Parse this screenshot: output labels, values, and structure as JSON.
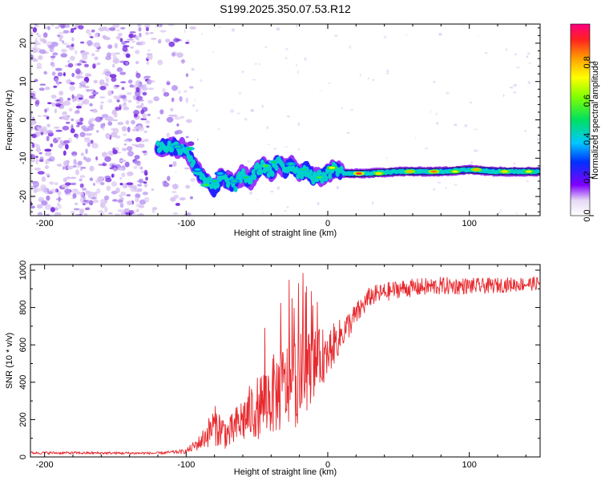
{
  "figure_title": "S199.2025.350.07.53.R12",
  "colors": {
    "snr_line": "#e8282d",
    "ridge_line": "#1a1a1a",
    "speckle_light": "#d9c4f2",
    "speckle_mid": "#b18cf0",
    "speckle_dark": "#7a2fe0"
  },
  "chart_data": [
    {
      "type": "heatmap",
      "name": "spectrogram",
      "xlabel": "Height of straight line (km)",
      "ylabel": "Frequency (Hz)",
      "xlim": [
        -210,
        150
      ],
      "ylim": [
        -25,
        25
      ],
      "xticks": [
        -200,
        -100,
        0,
        100
      ],
      "xtick_labels": [
        "-200",
        "-100",
        "0",
        "100"
      ],
      "yticks": [
        20,
        10,
        0,
        -10,
        -20
      ],
      "ytick_labels": [
        "20",
        "10",
        "0",
        "-10",
        "-20"
      ],
      "colorbar": {
        "label": "Normalized spectral amplitude",
        "range": [
          0,
          1
        ],
        "ticks": [
          0,
          0.2,
          0.4,
          0.6,
          0.8
        ],
        "tick_labels": [
          "0.0",
          "0.2",
          "0.4",
          "0.6",
          "0.8"
        ],
        "stops": [
          {
            "v": 0.0,
            "color": "#ffffff"
          },
          {
            "v": 0.08,
            "color": "#e6d8f5"
          },
          {
            "v": 0.16,
            "color": "#8000ff"
          },
          {
            "v": 0.28,
            "color": "#0030ff"
          },
          {
            "v": 0.38,
            "color": "#00c8ff"
          },
          {
            "v": 0.5,
            "color": "#00e060"
          },
          {
            "v": 0.62,
            "color": "#80ff00"
          },
          {
            "v": 0.72,
            "color": "#ffff00"
          },
          {
            "v": 0.82,
            "color": "#ffa000"
          },
          {
            "v": 0.92,
            "color": "#ff2020"
          },
          {
            "v": 1.0,
            "color": "#ff0080"
          }
        ]
      },
      "noise_region": {
        "x": [
          -210,
          -110
        ],
        "y": [
          -25,
          25
        ]
      },
      "ridge": [
        {
          "x": -120,
          "y": -7
        },
        {
          "x": -110,
          "y": -7
        },
        {
          "x": -100,
          "y": -7.5
        },
        {
          "x": -95,
          "y": -12
        },
        {
          "x": -90,
          "y": -14
        },
        {
          "x": -85,
          "y": -16
        },
        {
          "x": -80,
          "y": -18
        },
        {
          "x": -75,
          "y": -15
        },
        {
          "x": -70,
          "y": -16
        },
        {
          "x": -65,
          "y": -17
        },
        {
          "x": -60,
          "y": -14
        },
        {
          "x": -55,
          "y": -16
        },
        {
          "x": -50,
          "y": -13
        },
        {
          "x": -45,
          "y": -12
        },
        {
          "x": -40,
          "y": -14
        },
        {
          "x": -35,
          "y": -11
        },
        {
          "x": -30,
          "y": -13
        },
        {
          "x": -25,
          "y": -12
        },
        {
          "x": -20,
          "y": -14
        },
        {
          "x": -15,
          "y": -13
        },
        {
          "x": -10,
          "y": -15
        },
        {
          "x": -5,
          "y": -15
        },
        {
          "x": 0,
          "y": -14
        },
        {
          "x": 5,
          "y": -12.5
        },
        {
          "x": 12,
          "y": -14
        },
        {
          "x": 25,
          "y": -14
        },
        {
          "x": 50,
          "y": -13.5
        },
        {
          "x": 80,
          "y": -13.5
        },
        {
          "x": 100,
          "y": -13
        },
        {
          "x": 120,
          "y": -13.5
        },
        {
          "x": 150,
          "y": -13.5
        }
      ],
      "blobs": [
        {
          "x": -106,
          "y": -7,
          "a": 0.45
        },
        {
          "x": -98,
          "y": -7.5,
          "a": 0.5
        },
        {
          "x": -92,
          "y": -13,
          "a": 0.4
        },
        {
          "x": -86,
          "y": -17,
          "a": 0.55
        },
        {
          "x": -80,
          "y": -16,
          "a": 0.5
        },
        {
          "x": -76,
          "y": -14,
          "a": 0.4
        },
        {
          "x": -66,
          "y": -16,
          "a": 0.45
        },
        {
          "x": -58,
          "y": -15,
          "a": 0.5
        },
        {
          "x": -44,
          "y": -12,
          "a": 0.55
        },
        {
          "x": -38,
          "y": -11,
          "a": 0.5
        },
        {
          "x": -26,
          "y": -11.5,
          "a": 0.45
        },
        {
          "x": -17,
          "y": -13,
          "a": 0.5
        },
        {
          "x": -6,
          "y": -15,
          "a": 0.55
        },
        {
          "x": 3,
          "y": -12.5,
          "a": 0.7
        },
        {
          "x": 22,
          "y": -14,
          "a": 0.9
        },
        {
          "x": 36,
          "y": -14,
          "a": 0.75
        },
        {
          "x": 58,
          "y": -13.5,
          "a": 0.8
        },
        {
          "x": 75,
          "y": -13.5,
          "a": 0.85
        },
        {
          "x": 90,
          "y": -13.5,
          "a": 0.7
        },
        {
          "x": 105,
          "y": -13,
          "a": 0.8
        },
        {
          "x": 125,
          "y": -13.5,
          "a": 0.75
        },
        {
          "x": 142,
          "y": -13.5,
          "a": 0.7
        }
      ]
    },
    {
      "type": "line",
      "name": "snr",
      "xlabel": "Height of straight line (km)",
      "ylabel": "SNR (10 * v/v)",
      "xlim": [
        -210,
        150
      ],
      "ylim": [
        0,
        1030
      ],
      "xticks": [
        -200,
        -100,
        0,
        100
      ],
      "xtick_labels": [
        "-200",
        "-100",
        "0",
        "100"
      ],
      "yticks": [
        0,
        200,
        400,
        600,
        800,
        1000
      ],
      "ytick_labels": [
        "0",
        "200",
        "400",
        "600",
        "800",
        "1000"
      ],
      "series": [
        {
          "name": "SNR",
          "envelope": [
            {
              "x": -210,
              "base": 22,
              "amp": 12
            },
            {
              "x": -120,
              "base": 20,
              "amp": 12
            },
            {
              "x": -100,
              "base": 30,
              "amp": 20
            },
            {
              "x": -90,
              "base": 80,
              "amp": 70
            },
            {
              "x": -80,
              "base": 170,
              "amp": 180
            },
            {
              "x": -70,
              "base": 120,
              "amp": 140
            },
            {
              "x": -60,
              "base": 200,
              "amp": 220
            },
            {
              "x": -45,
              "base": 300,
              "amp": 320
            },
            {
              "x": -35,
              "base": 350,
              "amp": 380
            },
            {
              "x": -20,
              "base": 420,
              "amp": 420
            },
            {
              "x": -10,
              "base": 500,
              "amp": 300
            },
            {
              "x": 0,
              "base": 560,
              "amp": 220
            },
            {
              "x": 10,
              "base": 660,
              "amp": 140
            },
            {
              "x": 20,
              "base": 760,
              "amp": 110
            },
            {
              "x": 30,
              "base": 860,
              "amp": 90
            },
            {
              "x": 50,
              "base": 900,
              "amp": 80
            },
            {
              "x": 80,
              "base": 915,
              "amp": 80
            },
            {
              "x": 110,
              "base": 915,
              "amp": 70
            },
            {
              "x": 150,
              "base": 930,
              "amp": 60
            }
          ]
        }
      ]
    }
  ]
}
